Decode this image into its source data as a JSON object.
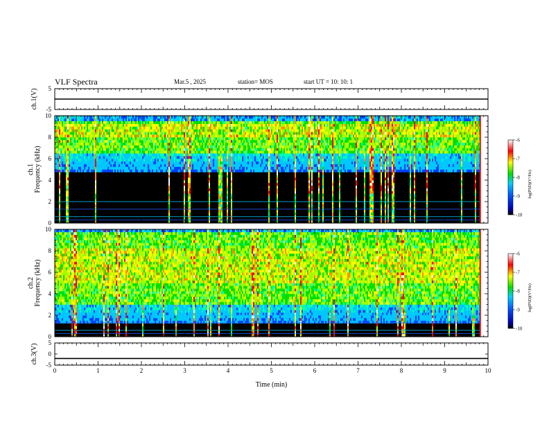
{
  "header": {
    "title": "VLF Spectra",
    "date": "Mar.5 , 2025",
    "station": "station= MOS",
    "start_ut": "start UT = 10: 10: 1"
  },
  "chart_data": [
    {
      "type": "line",
      "panel": "ch1-waveform",
      "ylabel": "ch.1(V)",
      "ylim": [
        -5,
        5
      ],
      "ytick_labels": [
        "5",
        "-5"
      ],
      "x": [
        0,
        10
      ],
      "values": [
        0,
        0
      ],
      "color": "#000000"
    },
    {
      "type": "heatmap",
      "panel": "ch1-spectrogram",
      "ylabel_lines": [
        "ch.1",
        "Frequency (kHz)"
      ],
      "ylim": [
        0,
        10
      ],
      "yticks": [
        0,
        2,
        4,
        6,
        8,
        10
      ],
      "xlim": [
        0,
        10
      ],
      "data_end_min": 9.82,
      "dominant_band_khz": [
        6.5,
        9.3
      ],
      "peak_band_khz": [
        8.0,
        9.0
      ],
      "colorbar": {
        "label": "log(PSD)(V²/Hz)",
        "ticks": [
          -6,
          -7,
          -8,
          -9,
          -10
        ]
      }
    },
    {
      "type": "heatmap",
      "panel": "ch2-spectrogram",
      "ylabel_lines": [
        "ch.2",
        "Frequency (kHz)"
      ],
      "ylim": [
        0,
        10
      ],
      "yticks": [
        0,
        2,
        4,
        6,
        8,
        10
      ],
      "xlim": [
        0,
        10
      ],
      "data_end_min": 9.82,
      "dominant_band_khz": [
        3.0,
        9.5
      ],
      "peak_band_khz": [
        5.0,
        8.0
      ],
      "colorbar": {
        "label": "log(PSD)(V²/Hz)",
        "ticks": [
          -6,
          -7,
          -8,
          -9,
          -10
        ]
      }
    },
    {
      "type": "line",
      "panel": "ch3-waveform",
      "ylabel": "ch.3(V)",
      "ylim": [
        -5,
        5
      ],
      "ytick_labels": [
        "5",
        "0",
        "-5"
      ],
      "x": [
        0,
        10
      ],
      "values": [
        -2,
        -2
      ],
      "color": "#000000"
    }
  ],
  "xaxis": {
    "label": "Time (min)",
    "ticks": [
      "0",
      "1",
      "2",
      "3",
      "4",
      "5",
      "6",
      "7",
      "8",
      "9",
      "10"
    ]
  },
  "colors": {
    "background": "#000000",
    "low": "#0000c8",
    "mid_low": "#00c8ff",
    "mid": "#00e000",
    "mid_high": "#ffff00",
    "high": "#ff0000",
    "top": "#ffffff"
  }
}
